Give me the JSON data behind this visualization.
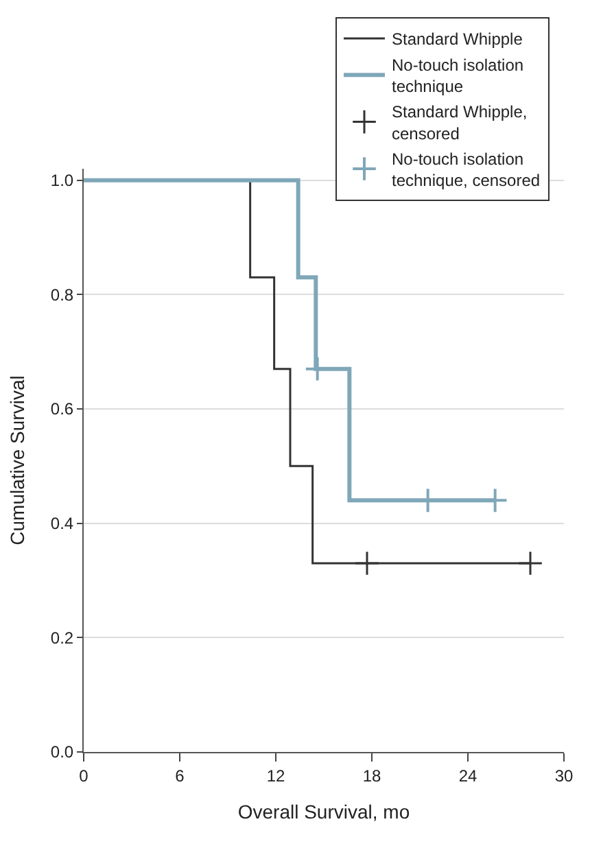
{
  "chart_data": {
    "type": "step",
    "xlabel": "Overall Survival, mo",
    "ylabel": "Cumulative Survival",
    "xlim": [
      0,
      30
    ],
    "xticks": [
      0,
      6,
      12,
      18,
      24,
      30
    ],
    "ylim": [
      0,
      1.02
    ],
    "yticks": [
      {
        "value": 0,
        "label": "0.0"
      },
      {
        "value": 0.2,
        "label": "0.2"
      },
      {
        "value": 0.4,
        "label": "0.4"
      },
      {
        "value": 0.6,
        "label": "0.6"
      },
      {
        "value": 0.8,
        "label": "0.8"
      },
      {
        "value": 1,
        "label": "1.0"
      }
    ],
    "grid": "y",
    "legend": "top right",
    "series": [
      {
        "name": "Standard Whipple",
        "color": "#333333",
        "x": [
          0,
          10.4,
          11.9,
          12.9,
          14.3,
          27.9
        ],
        "values": [
          1,
          0.83,
          0.67,
          0.5,
          0.33,
          0.33
        ]
      },
      {
        "name": "No-touch isolation technique",
        "color": "#7fa7b8",
        "x": [
          0,
          13.4,
          14.5,
          16.6,
          25.7
        ],
        "values": [
          1,
          0.83,
          0.67,
          0.44,
          0.44
        ]
      },
      {
        "name": "Standard Whipple, censored",
        "color": "#333333",
        "type": "scatter",
        "marker": "cross",
        "x": [
          17.7,
          27.9
        ],
        "values": [
          0.33,
          0.33
        ]
      },
      {
        "name": "No-touch isolation technique, censored",
        "color": "#7fa7b8",
        "type": "scatter",
        "marker": "cross",
        "x": [
          14.6,
          21.5,
          25.7
        ],
        "values": [
          0.67,
          0.44,
          0.44
        ]
      }
    ]
  }
}
